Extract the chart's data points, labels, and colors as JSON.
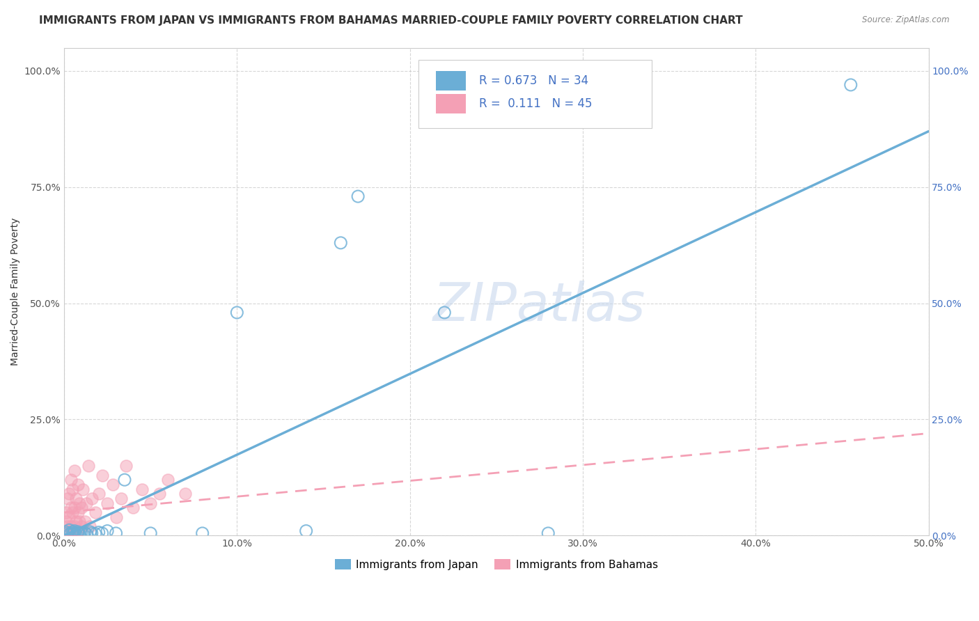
{
  "title": "IMMIGRANTS FROM JAPAN VS IMMIGRANTS FROM BAHAMAS MARRIED-COUPLE FAMILY POVERTY CORRELATION CHART",
  "source": "Source: ZipAtlas.com",
  "ylabel": "Married-Couple Family Poverty",
  "xlabel": "",
  "xlim": [
    0.0,
    0.5
  ],
  "ylim": [
    0.0,
    1.05
  ],
  "xticks": [
    0.0,
    0.1,
    0.2,
    0.3,
    0.4,
    0.5
  ],
  "xticklabels": [
    "0.0%",
    "10.0%",
    "20.0%",
    "30.0%",
    "40.0%",
    "50.0%"
  ],
  "yticks": [
    0.0,
    0.25,
    0.5,
    0.75,
    1.0
  ],
  "yticklabels": [
    "0.0%",
    "25.0%",
    "50.0%",
    "75.0%",
    "100.0%"
  ],
  "japan_color": "#6baed6",
  "bahamas_color": "#f4a0b5",
  "japan_R": 0.673,
  "japan_N": 34,
  "bahamas_R": 0.111,
  "bahamas_N": 45,
  "watermark": "ZIPatlas",
  "legend_japan_label": "Immigrants from Japan",
  "legend_bahamas_label": "Immigrants from Bahamas",
  "japan_line_x0": 0.0,
  "japan_line_y0": 0.0,
  "japan_line_x1": 0.5,
  "japan_line_y1": 0.87,
  "bahamas_line_x0": 0.0,
  "bahamas_line_y0": 0.05,
  "bahamas_line_x1": 0.5,
  "bahamas_line_y1": 0.22,
  "japan_scatter_x": [
    0.001,
    0.002,
    0.003,
    0.003,
    0.004,
    0.005,
    0.005,
    0.006,
    0.006,
    0.007,
    0.008,
    0.008,
    0.009,
    0.01,
    0.011,
    0.012,
    0.013,
    0.015,
    0.016,
    0.018,
    0.02,
    0.022,
    0.025,
    0.03,
    0.035,
    0.05,
    0.08,
    0.1,
    0.14,
    0.16,
    0.17,
    0.22,
    0.28,
    0.455
  ],
  "japan_scatter_y": [
    0.008,
    0.005,
    0.003,
    0.012,
    0.005,
    0.008,
    0.003,
    0.006,
    0.01,
    0.004,
    0.005,
    0.008,
    0.003,
    0.005,
    0.004,
    0.006,
    0.003,
    0.008,
    0.005,
    0.004,
    0.007,
    0.005,
    0.01,
    0.005,
    0.12,
    0.005,
    0.005,
    0.48,
    0.01,
    0.63,
    0.73,
    0.48,
    0.005,
    0.97
  ],
  "bahamas_scatter_x": [
    0.001,
    0.001,
    0.002,
    0.002,
    0.003,
    0.003,
    0.003,
    0.004,
    0.004,
    0.004,
    0.005,
    0.005,
    0.005,
    0.006,
    0.006,
    0.006,
    0.007,
    0.007,
    0.008,
    0.008,
    0.008,
    0.009,
    0.009,
    0.01,
    0.01,
    0.011,
    0.012,
    0.013,
    0.014,
    0.015,
    0.016,
    0.018,
    0.02,
    0.022,
    0.025,
    0.028,
    0.03,
    0.033,
    0.036,
    0.04,
    0.045,
    0.05,
    0.055,
    0.06,
    0.07
  ],
  "bahamas_scatter_y": [
    0.03,
    0.05,
    0.02,
    0.08,
    0.01,
    0.04,
    0.09,
    0.02,
    0.06,
    0.12,
    0.01,
    0.05,
    0.1,
    0.02,
    0.06,
    0.14,
    0.03,
    0.08,
    0.01,
    0.05,
    0.11,
    0.03,
    0.07,
    0.02,
    0.06,
    0.1,
    0.03,
    0.07,
    0.15,
    0.02,
    0.08,
    0.05,
    0.09,
    0.13,
    0.07,
    0.11,
    0.04,
    0.08,
    0.15,
    0.06,
    0.1,
    0.07,
    0.09,
    0.12,
    0.09
  ],
  "background_color": "#ffffff",
  "grid_color": "#cccccc",
  "title_fontsize": 11,
  "axis_label_fontsize": 10,
  "tick_fontsize": 10
}
